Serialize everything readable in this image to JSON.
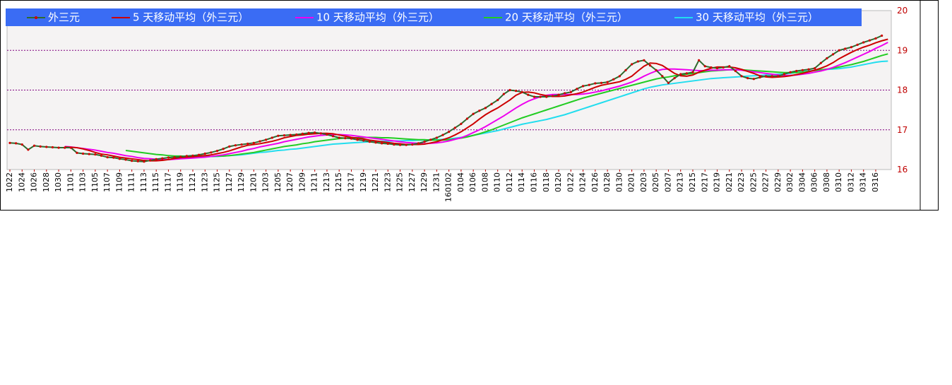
{
  "chart_data": {
    "type": "line",
    "categories": [
      "1022",
      null,
      "1024",
      null,
      "1026",
      null,
      "1028",
      null,
      "1030",
      null,
      "1101",
      null,
      "1103",
      null,
      "1105",
      null,
      "1107",
      null,
      "1109",
      null,
      "1111",
      null,
      "1113",
      null,
      "1115",
      null,
      "1117",
      null,
      "1119",
      null,
      "1121",
      null,
      "1123",
      null,
      "1125",
      null,
      "1127",
      null,
      "1129",
      null,
      "1201",
      null,
      "1203",
      null,
      "1205",
      null,
      "1207",
      null,
      "1209",
      null,
      "1211",
      null,
      "1213",
      null,
      "1215",
      null,
      "1217",
      null,
      "1219",
      null,
      "1221",
      null,
      "1223",
      null,
      "1225",
      null,
      "1227",
      null,
      "1229",
      null,
      "1231",
      null,
      "160102",
      null,
      "0104",
      null,
      "0106",
      null,
      "0108",
      null,
      "0110",
      null,
      "0112",
      null,
      "0114",
      null,
      "0116",
      null,
      "0118",
      null,
      "0120",
      null,
      "0122",
      null,
      "0124",
      null,
      "0126",
      null,
      "0128",
      null,
      "0130",
      null,
      "0201",
      null,
      "0203",
      null,
      "0205",
      null,
      "0207",
      null,
      "0213",
      null,
      "0215",
      null,
      "0217",
      null,
      "0219",
      null,
      "0221",
      null,
      "0223",
      null,
      "0225",
      null,
      "0227",
      null,
      "0229",
      null,
      "0302",
      null,
      "0304",
      null,
      "0306",
      null,
      "0308",
      null,
      "0310",
      null,
      "0312",
      null,
      "0314",
      null,
      "0316",
      null,
      null
    ],
    "series": [
      {
        "name": "外三元",
        "color": "#2e6b2e",
        "marker_color": "#d00000",
        "values": [
          16.67,
          16.66,
          16.63,
          16.5,
          16.6,
          16.58,
          16.57,
          16.56,
          16.55,
          16.55,
          16.55,
          16.42,
          16.4,
          16.39,
          16.38,
          16.35,
          16.31,
          16.3,
          16.27,
          16.25,
          16.22,
          16.21,
          16.2,
          16.23,
          16.26,
          16.28,
          16.3,
          16.31,
          16.32,
          16.34,
          16.35,
          16.37,
          16.4,
          16.43,
          16.47,
          16.52,
          16.58,
          16.61,
          16.63,
          16.65,
          16.67,
          16.71,
          16.75,
          16.8,
          16.85,
          16.86,
          16.87,
          16.88,
          16.9,
          16.92,
          16.93,
          16.91,
          16.88,
          16.84,
          16.8,
          16.79,
          16.78,
          16.75,
          16.73,
          16.7,
          16.68,
          16.66,
          16.65,
          16.63,
          16.62,
          16.62,
          16.63,
          16.66,
          16.7,
          16.75,
          16.8,
          16.87,
          16.95,
          17.05,
          17.15,
          17.28,
          17.4,
          17.48,
          17.55,
          17.65,
          17.75,
          17.9,
          18.0,
          17.98,
          17.95,
          17.88,
          17.83,
          17.83,
          17.83,
          17.85,
          17.88,
          17.92,
          17.95,
          18.03,
          18.1,
          18.13,
          18.17,
          18.18,
          18.2,
          18.27,
          18.35,
          18.5,
          18.65,
          18.72,
          18.75,
          18.62,
          18.5,
          18.35,
          18.18,
          18.3,
          18.4,
          18.42,
          18.45,
          18.75,
          18.6,
          18.57,
          18.55,
          18.57,
          18.6,
          18.48,
          18.35,
          18.3,
          18.28,
          18.32,
          18.35,
          18.35,
          18.35,
          18.4,
          18.45,
          18.48,
          18.5,
          18.52,
          18.55,
          18.68,
          18.8,
          18.9,
          19.0,
          19.04,
          19.08,
          19.14,
          19.2,
          19.25,
          19.3,
          19.37,
          null
        ]
      },
      {
        "name": "5 天移动平均（外三元）",
        "color": "#cc0000",
        "values": [
          null,
          null,
          null,
          null,
          null,
          null,
          null,
          null,
          null,
          16.57,
          16.56,
          16.55,
          16.52,
          16.48,
          16.43,
          16.39,
          16.37,
          16.34,
          16.31,
          16.29,
          16.27,
          16.25,
          16.23,
          16.22,
          16.22,
          16.23,
          16.25,
          16.28,
          16.3,
          16.31,
          16.32,
          16.34,
          16.35,
          16.37,
          16.4,
          16.43,
          16.47,
          16.52,
          16.57,
          16.61,
          16.63,
          16.65,
          16.68,
          16.71,
          16.75,
          16.8,
          16.83,
          16.86,
          16.87,
          16.89,
          16.9,
          16.91,
          16.91,
          16.9,
          16.87,
          16.84,
          16.81,
          16.79,
          16.77,
          16.74,
          16.72,
          16.7,
          16.68,
          16.66,
          16.65,
          16.63,
          16.63,
          16.63,
          16.64,
          16.67,
          16.7,
          16.75,
          16.8,
          16.87,
          16.95,
          17.05,
          17.15,
          17.27,
          17.38,
          17.47,
          17.55,
          17.65,
          17.75,
          17.87,
          17.94,
          17.95,
          17.93,
          17.89,
          17.86,
          17.84,
          17.84,
          17.85,
          17.88,
          17.91,
          17.95,
          18.01,
          18.07,
          18.12,
          18.15,
          18.18,
          18.21,
          18.27,
          18.35,
          18.48,
          18.6,
          18.68,
          18.67,
          18.62,
          18.52,
          18.42,
          18.36,
          18.35,
          18.38,
          18.45,
          18.5,
          18.55,
          18.58,
          18.58,
          18.58,
          18.56,
          18.52,
          18.47,
          18.42,
          18.36,
          18.33,
          18.32,
          18.33,
          18.34,
          18.36,
          18.39,
          18.42,
          18.46,
          18.5,
          18.55,
          18.61,
          18.69,
          18.79,
          18.87,
          18.95,
          19.02,
          19.08,
          19.13,
          19.19,
          19.24,
          19.28
        ]
      },
      {
        "name": "10 天移动平均（外三元）",
        "color": "#ee00ee",
        "values": [
          null,
          null,
          null,
          null,
          null,
          null,
          null,
          null,
          null,
          16.58,
          16.57,
          16.55,
          16.53,
          16.51,
          16.49,
          16.46,
          16.43,
          16.41,
          16.38,
          16.35,
          16.33,
          16.3,
          16.28,
          16.27,
          16.26,
          16.25,
          16.25,
          16.26,
          16.27,
          16.28,
          16.29,
          16.3,
          16.31,
          16.33,
          16.35,
          16.37,
          16.4,
          16.43,
          16.46,
          16.5,
          16.53,
          16.57,
          16.6,
          16.63,
          16.66,
          16.7,
          16.73,
          16.76,
          16.79,
          16.82,
          16.84,
          16.86,
          16.87,
          16.88,
          16.88,
          16.87,
          16.86,
          16.84,
          16.82,
          16.8,
          16.78,
          16.76,
          16.74,
          16.72,
          16.7,
          16.68,
          16.67,
          16.66,
          16.65,
          16.66,
          16.67,
          16.69,
          16.72,
          16.76,
          16.8,
          16.86,
          16.93,
          17.0,
          17.08,
          17.17,
          17.26,
          17.35,
          17.45,
          17.55,
          17.64,
          17.72,
          17.78,
          17.83,
          17.87,
          17.89,
          17.89,
          17.89,
          17.89,
          17.89,
          17.9,
          17.92,
          17.95,
          17.98,
          18.02,
          18.06,
          18.1,
          18.15,
          18.2,
          18.27,
          18.35,
          18.42,
          18.48,
          18.52,
          18.53,
          18.53,
          18.52,
          18.51,
          18.5,
          18.49,
          18.49,
          18.5,
          18.5,
          18.51,
          18.51,
          18.51,
          18.5,
          18.48,
          18.46,
          18.44,
          18.42,
          18.4,
          18.38,
          18.37,
          18.37,
          18.38,
          18.4,
          18.42,
          18.45,
          18.48,
          18.52,
          18.57,
          18.63,
          18.69,
          18.76,
          18.83,
          18.9,
          18.97,
          19.05,
          19.12,
          19.2
        ]
      },
      {
        "name": "20 天移动平均（外三元）",
        "color": "#22cc22",
        "values": [
          null,
          null,
          null,
          null,
          null,
          null,
          null,
          null,
          null,
          null,
          null,
          null,
          null,
          null,
          null,
          null,
          null,
          null,
          null,
          16.48,
          16.46,
          16.44,
          16.42,
          16.4,
          16.38,
          16.37,
          16.35,
          16.34,
          16.34,
          16.33,
          16.33,
          16.33,
          16.33,
          16.33,
          16.34,
          16.34,
          16.35,
          16.37,
          16.39,
          16.41,
          16.43,
          16.46,
          16.49,
          16.52,
          16.55,
          16.58,
          16.6,
          16.62,
          16.65,
          16.67,
          16.7,
          16.72,
          16.74,
          16.76,
          16.78,
          16.79,
          16.8,
          16.8,
          16.81,
          16.81,
          16.81,
          16.8,
          16.8,
          16.79,
          16.78,
          16.77,
          16.76,
          16.75,
          16.75,
          16.74,
          16.74,
          16.74,
          16.75,
          16.77,
          16.79,
          16.82,
          16.86,
          16.9,
          16.95,
          17.0,
          17.06,
          17.12,
          17.18,
          17.24,
          17.3,
          17.35,
          17.4,
          17.45,
          17.5,
          17.55,
          17.6,
          17.65,
          17.7,
          17.75,
          17.8,
          17.84,
          17.88,
          17.92,
          17.96,
          18.0,
          18.04,
          18.08,
          18.12,
          18.16,
          18.2,
          18.24,
          18.28,
          18.31,
          18.33,
          18.36,
          18.38,
          18.4,
          18.42,
          18.44,
          18.46,
          18.48,
          18.49,
          18.5,
          18.51,
          18.51,
          18.51,
          18.5,
          18.49,
          18.48,
          18.47,
          18.46,
          18.45,
          18.44,
          18.44,
          18.44,
          18.45,
          18.47,
          18.49,
          18.51,
          18.53,
          18.55,
          18.58,
          18.61,
          18.64,
          18.68,
          18.72,
          18.77,
          18.82,
          18.87,
          18.91
        ]
      },
      {
        "name": "30 天移动平均（外三元）",
        "color": "#22ddee",
        "values": [
          null,
          null,
          null,
          null,
          null,
          null,
          null,
          null,
          null,
          null,
          null,
          null,
          null,
          null,
          null,
          null,
          null,
          null,
          null,
          null,
          null,
          null,
          null,
          null,
          null,
          null,
          null,
          null,
          null,
          16.3,
          16.31,
          16.31,
          16.32,
          16.33,
          16.33,
          16.34,
          16.35,
          16.36,
          16.37,
          16.39,
          16.41,
          16.43,
          16.44,
          16.46,
          16.48,
          16.49,
          16.51,
          16.52,
          16.54,
          16.56,
          16.58,
          16.6,
          16.62,
          16.64,
          16.65,
          16.66,
          16.67,
          16.68,
          16.69,
          16.7,
          16.7,
          16.71,
          16.71,
          16.72,
          16.72,
          16.73,
          16.73,
          16.74,
          16.74,
          16.75,
          16.75,
          16.76,
          16.77,
          16.79,
          16.81,
          16.83,
          16.86,
          16.89,
          16.92,
          16.95,
          16.98,
          17.02,
          17.06,
          17.1,
          17.14,
          17.17,
          17.2,
          17.23,
          17.26,
          17.3,
          17.34,
          17.38,
          17.43,
          17.48,
          17.53,
          17.58,
          17.63,
          17.68,
          17.73,
          17.78,
          17.83,
          17.88,
          17.93,
          17.98,
          18.03,
          18.07,
          18.1,
          18.13,
          18.15,
          18.17,
          18.19,
          18.21,
          18.23,
          18.25,
          18.27,
          18.29,
          18.3,
          18.31,
          18.32,
          18.33,
          18.34,
          18.35,
          18.36,
          18.37,
          18.38,
          18.39,
          18.4,
          18.41,
          18.42,
          18.44,
          18.46,
          18.48,
          18.5,
          18.51,
          18.52,
          18.53,
          18.54,
          18.56,
          18.58,
          18.61,
          18.64,
          18.67,
          18.7,
          18.72,
          18.73
        ]
      }
    ],
    "ylim": [
      16,
      20
    ],
    "yticks": [
      16,
      17,
      18,
      19,
      20
    ],
    "y_axis_side": "right",
    "grid": true,
    "grid_color": "#800080",
    "tick_label_color": "#c00000",
    "legend_position": "top",
    "legend_color": "#3a6cf4"
  }
}
